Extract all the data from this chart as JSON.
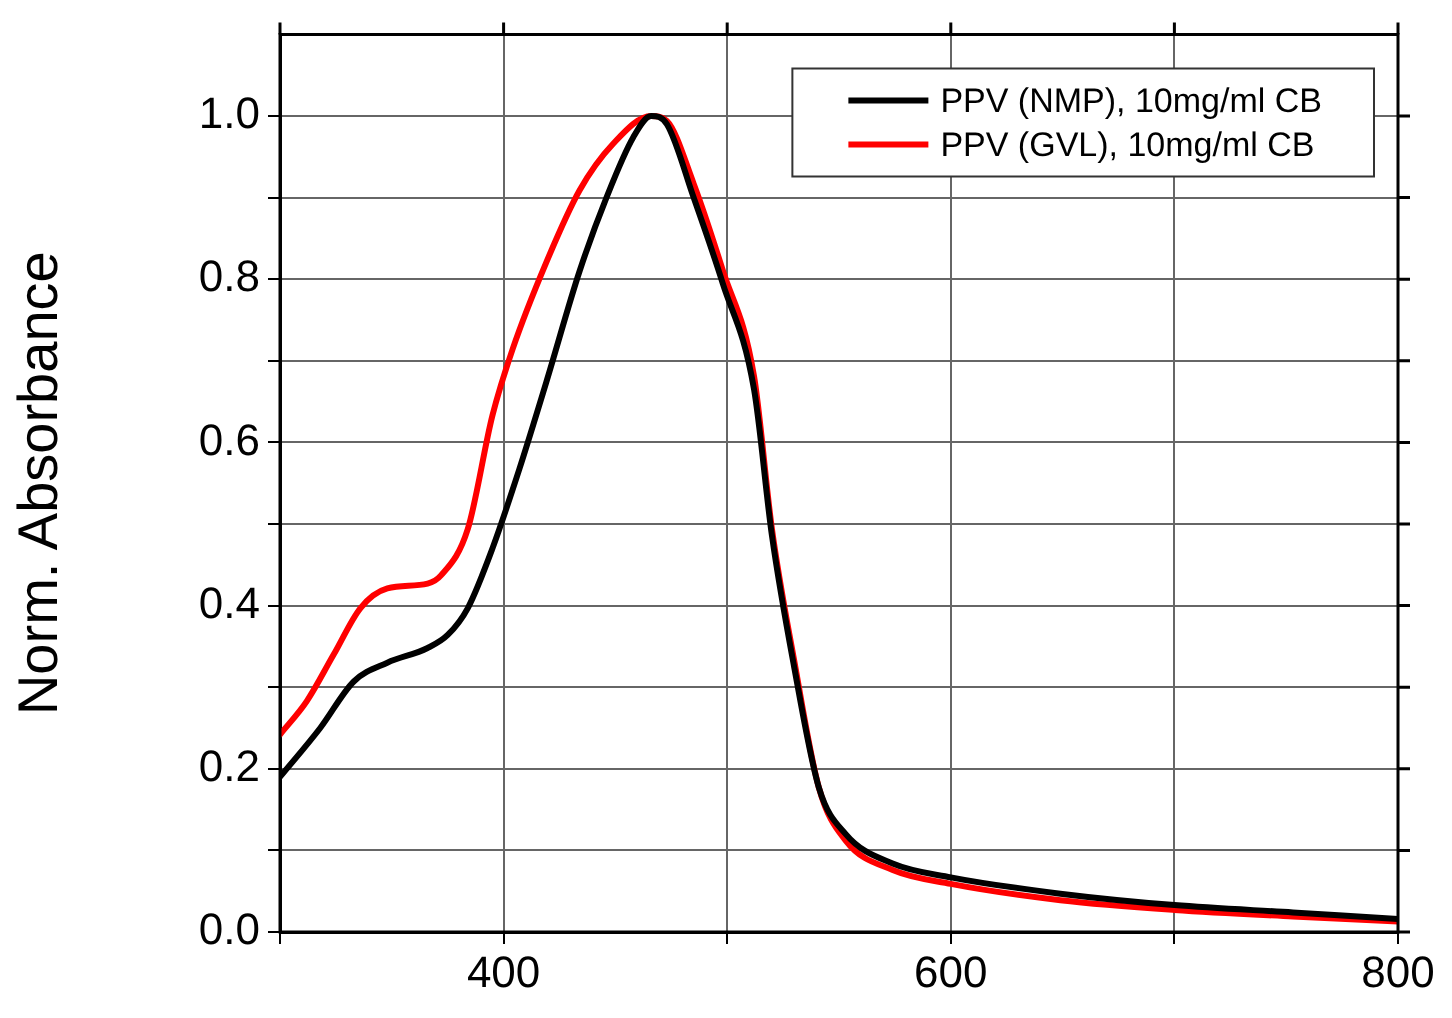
{
  "chart_data": {
    "type": "line",
    "ylabel": "Norm. Absorbance",
    "xlim": [
      300,
      800
    ],
    "xticks": [
      {
        "value": 300,
        "label": null
      },
      400,
      {
        "value": 500,
        "label": null
      },
      600,
      {
        "value": 700,
        "label": null
      },
      800
    ],
    "ylim": [
      0,
      1.1
    ],
    "yticks": [
      {
        "value": 0,
        "label": "0.0"
      },
      {
        "value": 0.1,
        "label": null
      },
      0.2,
      {
        "value": 0.3,
        "label": null
      },
      0.4,
      {
        "value": 0.5,
        "label": null
      },
      0.6,
      {
        "value": 0.7,
        "label": null
      },
      0.8,
      {
        "value": 0.9,
        "label": null
      },
      {
        "value": 1.0,
        "label": "1.0"
      }
    ],
    "grid": true,
    "legend": "top right",
    "marker": "none",
    "line_style": "solid",
    "series": [
      {
        "name": "PPV (NMP), 10mg/ml CB",
        "color": "#000000",
        "x": [
          300,
          318,
          333,
          348,
          366,
          375,
          384,
          395,
          407,
          419,
          434,
          446,
          458,
          466,
          473,
          485,
          498,
          512,
          520,
          530,
          541,
          553,
          574,
          600,
          649,
          700,
          753,
          800
        ],
        "values": [
          0.19,
          0.25,
          0.307,
          0.33,
          0.348,
          0.364,
          0.397,
          0.47,
          0.567,
          0.673,
          0.81,
          0.9,
          0.974,
          1.0,
          0.99,
          0.9,
          0.795,
          0.665,
          0.486,
          0.324,
          0.177,
          0.12,
          0.084,
          0.067,
          0.047,
          0.033,
          0.024,
          0.016
        ]
      },
      {
        "name": "PPV (GVL), 10mg/ml CB",
        "color": "#ff0000",
        "x": [
          300,
          312,
          324,
          336,
          348,
          366,
          372,
          384,
          395,
          404,
          419,
          434,
          449,
          466,
          473,
          485,
          498,
          512,
          520,
          530,
          541,
          553,
          574,
          600,
          649,
          700,
          753,
          800
        ],
        "values": [
          0.242,
          0.283,
          0.34,
          0.397,
          0.421,
          0.427,
          0.437,
          0.494,
          0.633,
          0.714,
          0.82,
          0.909,
          0.966,
          1.0,
          0.994,
          0.917,
          0.811,
          0.681,
          0.494,
          0.332,
          0.177,
          0.112,
          0.076,
          0.059,
          0.039,
          0.027,
          0.019,
          0.013
        ]
      }
    ]
  }
}
